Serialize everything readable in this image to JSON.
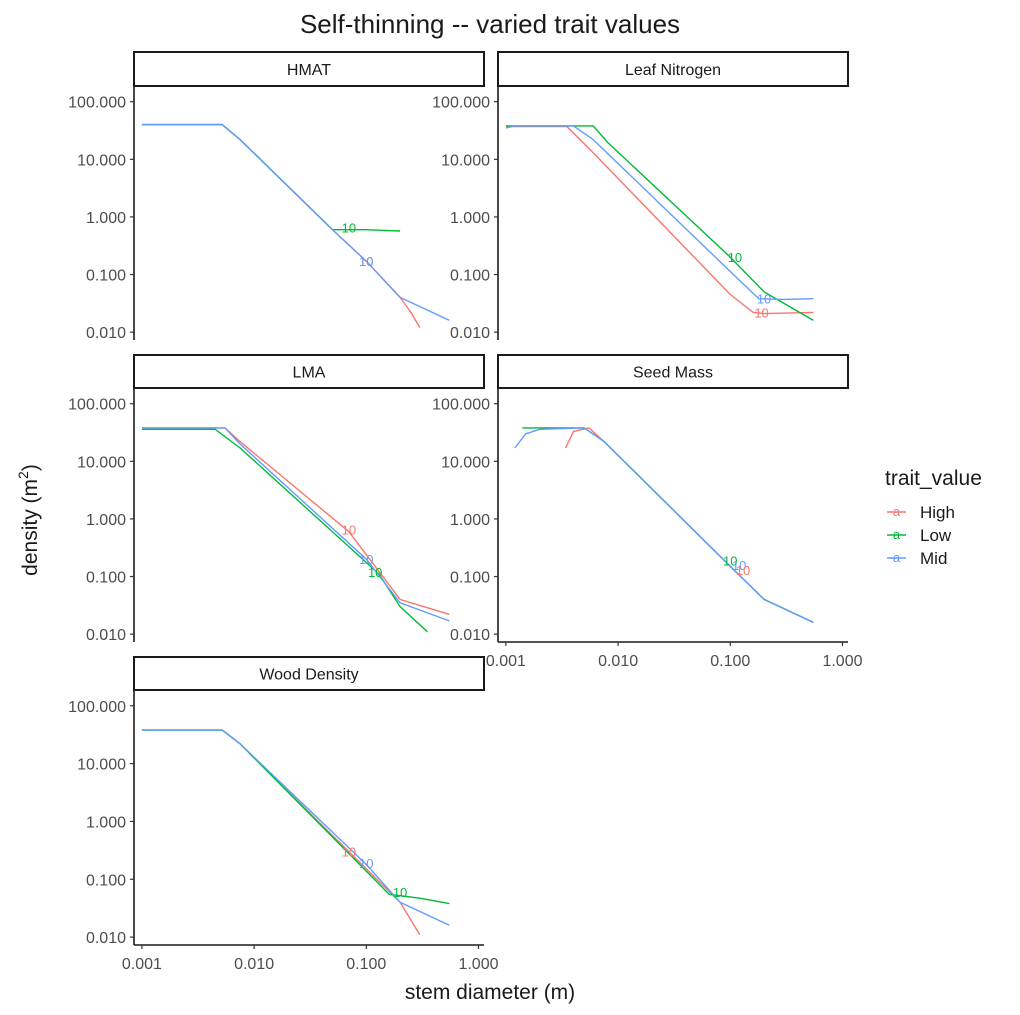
{
  "chart_data": {
    "type": "line",
    "title": "Self-thinning -- varied trait values",
    "xlabel": "stem diameter (m)",
    "ylabel": "density",
    "ylabel_unit_base": "m",
    "ylabel_unit_exp": "2",
    "x_scale": "log10",
    "y_scale": "log10",
    "xlim": [
      0.00085,
      1.12
    ],
    "ylim": [
      0.0073,
      180
    ],
    "x_ticks": [
      0.001,
      0.01,
      0.1,
      1
    ],
    "x_tick_labels": [
      "0.001",
      "0.010",
      "0.100",
      "1.000"
    ],
    "y_ticks": [
      100,
      10,
      1,
      0.1,
      0.01
    ],
    "y_tick_labels": [
      "100.000",
      "10.000",
      "1.000",
      "0.100",
      "0.010"
    ],
    "grid": false,
    "legend": {
      "title": "trait_value",
      "position": "right",
      "key_glyph": "a",
      "entries": [
        {
          "name": "High",
          "color": "#F8766D"
        },
        {
          "name": "Low",
          "color": "#00BA38"
        },
        {
          "name": "Mid",
          "color": "#619CFF"
        }
      ]
    },
    "panels": [
      {
        "label": "HMAT",
        "series": [
          {
            "name": "High",
            "x": [
              0.001,
              0.0052,
              0.0075,
              0.05,
              0.1,
              0.2,
              0.25,
              0.3
            ],
            "y": [
              40,
              40,
              22,
              0.6,
              0.17,
              0.04,
              0.022,
              0.012
            ]
          },
          {
            "name": "Low",
            "x": [
              0.001,
              0.0052,
              0.0075,
              0.05,
              0.1,
              0.2
            ],
            "y": [
              40,
              40,
              22,
              0.6,
              0.6,
              0.57
            ]
          },
          {
            "name": "Mid",
            "x": [
              0.001,
              0.0052,
              0.0075,
              0.05,
              0.1,
              0.2,
              0.55
            ],
            "y": [
              40,
              40,
              22,
              0.6,
              0.17,
              0.04,
              0.016
            ]
          }
        ],
        "annotations": [
          {
            "series": "Low",
            "text": "10",
            "x": 0.07,
            "y": 0.65
          },
          {
            "series": "High",
            "text": "10",
            "x": 0.1,
            "y": 0.17
          },
          {
            "series": "Mid",
            "text": "10",
            "x": 0.1,
            "y": 0.17
          }
        ]
      },
      {
        "label": "Leaf Nitrogen",
        "series": [
          {
            "name": "High",
            "x": [
              0.001,
              0.0035,
              0.006,
              0.1,
              0.16,
              0.2,
              0.55
            ],
            "y": [
              37,
              37,
              13,
              0.045,
              0.022,
              0.021,
              0.022
            ]
          },
          {
            "name": "Low",
            "x": [
              0.001,
              0.0012,
              0.006,
              0.008,
              0.1,
              0.2,
              0.55
            ],
            "y": [
              38,
              38,
              38,
              20,
              0.2,
              0.05,
              0.016
            ]
          },
          {
            "name": "Mid",
            "x": [
              0.001,
              0.0012,
              0.004,
              0.006,
              0.12,
              0.18,
              0.3,
              0.55
            ],
            "y": [
              35,
              38,
              38,
              22,
              0.08,
              0.038,
              0.037,
              0.038
            ]
          }
        ],
        "annotations": [
          {
            "series": "Low",
            "text": "10",
            "x": 0.11,
            "y": 0.2
          },
          {
            "series": "Mid",
            "text": "10",
            "x": 0.2,
            "y": 0.038
          },
          {
            "series": "High",
            "text": "10",
            "x": 0.19,
            "y": 0.022
          }
        ]
      },
      {
        "label": "LMA",
        "series": [
          {
            "name": "High",
            "x": [
              0.001,
              0.0055,
              0.0075,
              0.07,
              0.2,
              0.55
            ],
            "y": [
              38,
              38,
              22,
              0.6,
              0.04,
              0.022
            ]
          },
          {
            "name": "Low",
            "x": [
              0.001,
              0.0045,
              0.0075,
              0.13,
              0.2,
              0.35
            ],
            "y": [
              36,
              36,
              17,
              0.11,
              0.03,
              0.011
            ]
          },
          {
            "name": "Mid",
            "x": [
              0.001,
              0.0055,
              0.0075,
              0.1,
              0.2,
              0.55
            ],
            "y": [
              38,
              38,
              20,
              0.2,
              0.035,
              0.017
            ]
          }
        ],
        "annotations": [
          {
            "series": "High",
            "text": "10",
            "x": 0.07,
            "y": 0.65
          },
          {
            "series": "Mid",
            "text": "10",
            "x": 0.1,
            "y": 0.2
          },
          {
            "series": "Low",
            "text": "10",
            "x": 0.12,
            "y": 0.12
          }
        ]
      },
      {
        "label": "Seed Mass",
        "series": [
          {
            "name": "High",
            "x": [
              0.0034,
              0.004,
              0.0055,
              0.0075,
              0.1,
              0.2,
              0.55
            ],
            "y": [
              17,
              33,
              38,
              22,
              0.15,
              0.04,
              0.016
            ]
          },
          {
            "name": "Low",
            "x": [
              0.0014,
              0.005,
              0.0075,
              0.1,
              0.2,
              0.55
            ],
            "y": [
              38,
              38,
              22,
              0.15,
              0.04,
              0.016
            ]
          },
          {
            "name": "Mid",
            "x": [
              0.0012,
              0.0015,
              0.002,
              0.005,
              0.0075,
              0.1,
              0.2,
              0.55
            ],
            "y": [
              17,
              30,
              36,
              38,
              22,
              0.15,
              0.04,
              0.016
            ]
          }
        ],
        "annotations": [
          {
            "series": "Low",
            "text": "10",
            "x": 0.1,
            "y": 0.19
          },
          {
            "series": "Mid",
            "text": "10",
            "x": 0.12,
            "y": 0.16
          },
          {
            "series": "High",
            "text": "10",
            "x": 0.13,
            "y": 0.13
          }
        ]
      },
      {
        "label": "Wood Density",
        "series": [
          {
            "name": "High",
            "x": [
              0.001,
              0.0052,
              0.0075,
              0.07,
              0.2,
              0.3
            ],
            "y": [
              38,
              38,
              22,
              0.3,
              0.04,
              0.011
            ]
          },
          {
            "name": "Low",
            "x": [
              0.001,
              0.0052,
              0.0075,
              0.16,
              0.3,
              0.55
            ],
            "y": [
              38,
              38,
              22,
              0.055,
              0.047,
              0.038
            ]
          },
          {
            "name": "Mid",
            "x": [
              0.001,
              0.0052,
              0.0075,
              0.1,
              0.2,
              0.55
            ],
            "y": [
              38,
              38,
              22,
              0.18,
              0.04,
              0.016
            ]
          }
        ],
        "annotations": [
          {
            "series": "High",
            "text": "10",
            "x": 0.07,
            "y": 0.3
          },
          {
            "series": "Mid",
            "text": "10",
            "x": 0.1,
            "y": 0.19
          },
          {
            "series": "Low",
            "text": "10",
            "x": 0.2,
            "y": 0.06
          }
        ]
      }
    ]
  }
}
